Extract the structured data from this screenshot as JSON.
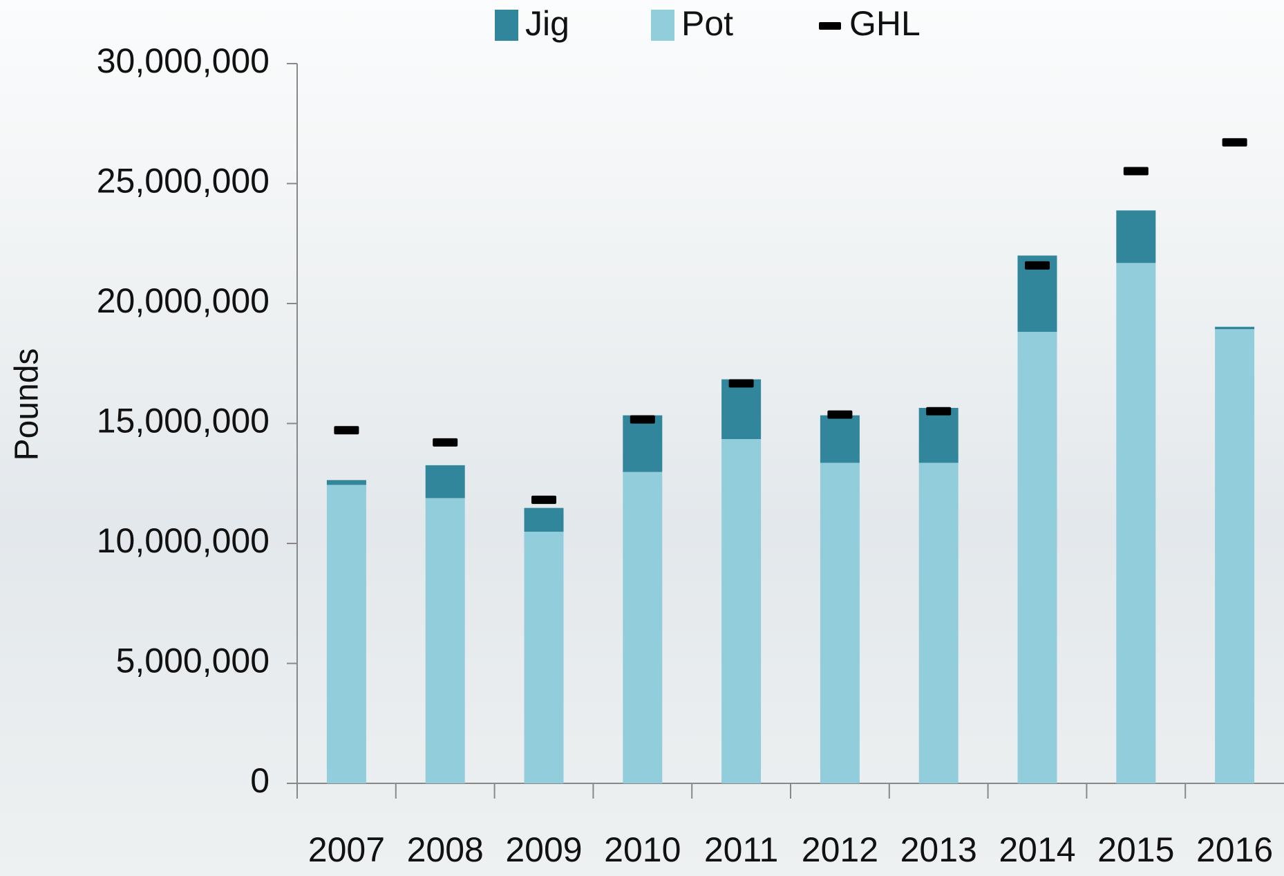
{
  "chart_data": {
    "type": "stacked-bar",
    "y_label": "Pounds",
    "categories": [
      "2007",
      "2008",
      "2009",
      "2010",
      "2011",
      "2012",
      "2013",
      "2014",
      "2015",
      "2016"
    ],
    "series": [
      {
        "name": "Pot",
        "color": "#92cddc",
        "values": [
          12440000,
          11890000,
          10490000,
          12980000,
          14350000,
          13360000,
          13360000,
          18820000,
          21690000,
          18930000
        ]
      },
      {
        "name": "Jig",
        "color": "#31869b",
        "values": [
          200000,
          1370000,
          990000,
          2360000,
          2490000,
          1980000,
          2290000,
          3180000,
          2190000,
          100000
        ]
      }
    ],
    "markers": {
      "name": "GHL",
      "color": "#000000",
      "values": [
        14720000,
        14210000,
        11820000,
        15170000,
        16670000,
        15370000,
        15510000,
        21590000,
        25520000,
        26720000
      ]
    },
    "ylim": [
      0,
      30000000
    ],
    "yticks": [
      {
        "value": 0,
        "label": "0"
      },
      {
        "value": 5000000,
        "label": "5,000,000"
      },
      {
        "value": 10000000,
        "label": "10,000,000"
      },
      {
        "value": 15000000,
        "label": "15,000,000"
      },
      {
        "value": 20000000,
        "label": "20,000,000"
      },
      {
        "value": 25000000,
        "label": "25,000,000"
      },
      {
        "value": 30000000,
        "label": "30,000,000"
      }
    ],
    "grid": false
  }
}
